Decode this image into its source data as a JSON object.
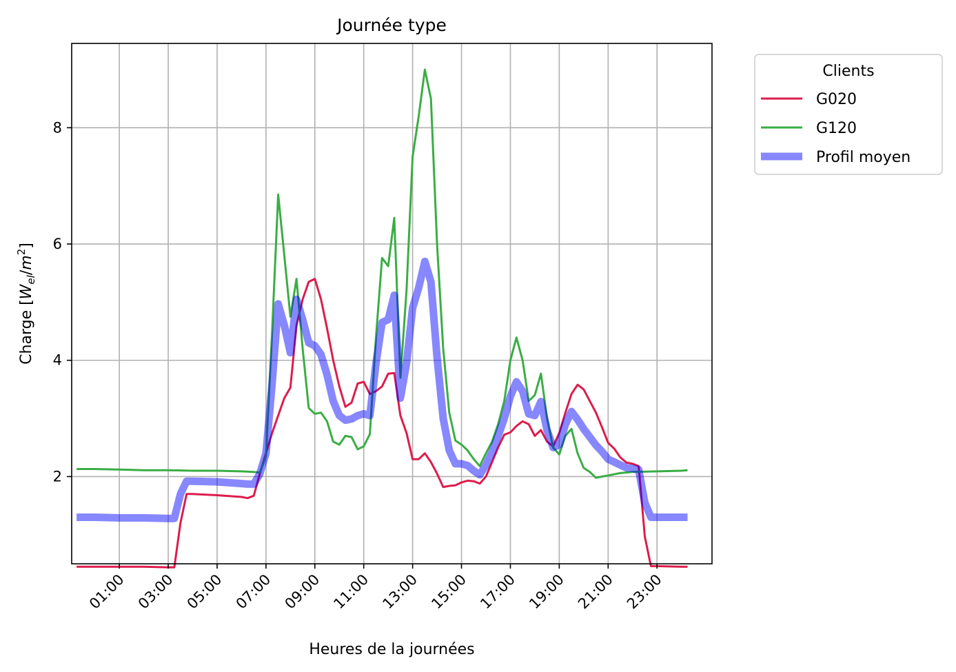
{
  "chart_data": {
    "type": "line",
    "title": "Journée type",
    "xlabel": "Heures de la journées",
    "ylabel_prefix": "Charge [",
    "ylabel_var": "W",
    "ylabel_sub": "el",
    "ylabel_mid": "/",
    "ylabel_var2": "m",
    "ylabel_sup": "2",
    "ylabel_suffix": "]",
    "xlim": [
      -0.95,
      25.25
    ],
    "ylim": [
      0.5,
      9.45
    ],
    "x_ticks": [
      1,
      3,
      5,
      7,
      9,
      11,
      13,
      15,
      17,
      19,
      21,
      23
    ],
    "x_tick_labels": [
      "01:00",
      "03:00",
      "05:00",
      "07:00",
      "09:00",
      "11:00",
      "13:00",
      "15:00",
      "17:00",
      "19:00",
      "21:00",
      "23:00"
    ],
    "y_ticks": [
      2,
      4,
      6,
      8
    ],
    "y_tick_labels": [
      "2",
      "4",
      "6",
      "8"
    ],
    "grid": true,
    "legend": {
      "title": "Clients",
      "placement": "outside-top-right"
    },
    "series": [
      {
        "name": "G020",
        "color": "#dc1c4b",
        "width": 3,
        "alpha": 1,
        "points": [
          [
            -0.75,
            0.45
          ],
          [
            0,
            0.45
          ],
          [
            1,
            0.45
          ],
          [
            2,
            0.45
          ],
          [
            3,
            0.44
          ],
          [
            3.25,
            0.44
          ],
          [
            3.5,
            1.2
          ],
          [
            3.75,
            1.7
          ],
          [
            4,
            1.7
          ],
          [
            5,
            1.68
          ],
          [
            6,
            1.65
          ],
          [
            6.25,
            1.63
          ],
          [
            6.5,
            1.67
          ],
          [
            6.75,
            2.05
          ],
          [
            7,
            2.4
          ],
          [
            7.25,
            2.75
          ],
          [
            7.5,
            3.05
          ],
          [
            7.75,
            3.35
          ],
          [
            8,
            3.53
          ],
          [
            8.25,
            4.6
          ],
          [
            8.5,
            5.05
          ],
          [
            8.75,
            5.35
          ],
          [
            9,
            5.4
          ],
          [
            9.25,
            5.05
          ],
          [
            9.5,
            4.55
          ],
          [
            9.75,
            4.0
          ],
          [
            10,
            3.55
          ],
          [
            10.25,
            3.2
          ],
          [
            10.5,
            3.27
          ],
          [
            10.75,
            3.6
          ],
          [
            11,
            3.63
          ],
          [
            11.25,
            3.42
          ],
          [
            11.5,
            3.47
          ],
          [
            11.75,
            3.55
          ],
          [
            12,
            3.77
          ],
          [
            12.25,
            3.78
          ],
          [
            12.5,
            3.05
          ],
          [
            12.75,
            2.75
          ],
          [
            13,
            2.3
          ],
          [
            13.25,
            2.3
          ],
          [
            13.5,
            2.4
          ],
          [
            13.75,
            2.25
          ],
          [
            14,
            2.05
          ],
          [
            14.25,
            1.82
          ],
          [
            14.5,
            1.84
          ],
          [
            14.75,
            1.85
          ],
          [
            15,
            1.9
          ],
          [
            15.25,
            1.93
          ],
          [
            15.5,
            1.92
          ],
          [
            15.75,
            1.88
          ],
          [
            16,
            2.0
          ],
          [
            16.25,
            2.25
          ],
          [
            16.5,
            2.5
          ],
          [
            16.75,
            2.72
          ],
          [
            17,
            2.76
          ],
          [
            17.25,
            2.87
          ],
          [
            17.5,
            2.95
          ],
          [
            17.75,
            2.9
          ],
          [
            18,
            2.7
          ],
          [
            18.25,
            2.8
          ],
          [
            18.5,
            2.6
          ],
          [
            18.75,
            2.52
          ],
          [
            19,
            2.75
          ],
          [
            19.25,
            3.1
          ],
          [
            19.5,
            3.42
          ],
          [
            19.75,
            3.58
          ],
          [
            20,
            3.5
          ],
          [
            20.25,
            3.3
          ],
          [
            20.5,
            3.1
          ],
          [
            20.75,
            2.85
          ],
          [
            21,
            2.58
          ],
          [
            21.25,
            2.48
          ],
          [
            21.5,
            2.33
          ],
          [
            21.75,
            2.24
          ],
          [
            22,
            2.22
          ],
          [
            22.25,
            2.18
          ],
          [
            22.5,
            0.97
          ],
          [
            22.75,
            0.46
          ],
          [
            23,
            0.46
          ],
          [
            24,
            0.45
          ],
          [
            24.25,
            0.45
          ]
        ]
      },
      {
        "name": "G120",
        "color": "#3aad44",
        "width": 3,
        "alpha": 1,
        "points": [
          [
            -0.75,
            2.13
          ],
          [
            0,
            2.13
          ],
          [
            1,
            2.12
          ],
          [
            2,
            2.11
          ],
          [
            3,
            2.11
          ],
          [
            4,
            2.1
          ],
          [
            5,
            2.1
          ],
          [
            6,
            2.09
          ],
          [
            6.5,
            2.08
          ],
          [
            6.75,
            2.07
          ],
          [
            7,
            2.35
          ],
          [
            7.25,
            4.5
          ],
          [
            7.5,
            6.85
          ],
          [
            7.75,
            5.8
          ],
          [
            8,
            4.75
          ],
          [
            8.25,
            5.4
          ],
          [
            8.5,
            4.2
          ],
          [
            8.75,
            3.18
          ],
          [
            9,
            3.08
          ],
          [
            9.25,
            3.1
          ],
          [
            9.5,
            2.95
          ],
          [
            9.75,
            2.6
          ],
          [
            10,
            2.55
          ],
          [
            10.25,
            2.7
          ],
          [
            10.5,
            2.68
          ],
          [
            10.75,
            2.47
          ],
          [
            11,
            2.52
          ],
          [
            11.25,
            2.73
          ],
          [
            11.5,
            4.4
          ],
          [
            11.75,
            5.76
          ],
          [
            12,
            5.62
          ],
          [
            12.25,
            6.45
          ],
          [
            12.5,
            3.7
          ],
          [
            12.75,
            5.2
          ],
          [
            13,
            7.5
          ],
          [
            13.25,
            8.2
          ],
          [
            13.5,
            9.0
          ],
          [
            13.75,
            8.5
          ],
          [
            14,
            6.0
          ],
          [
            14.25,
            4.2
          ],
          [
            14.5,
            3.1
          ],
          [
            14.75,
            2.62
          ],
          [
            15,
            2.55
          ],
          [
            15.25,
            2.45
          ],
          [
            15.5,
            2.3
          ],
          [
            15.75,
            2.18
          ],
          [
            16,
            2.4
          ],
          [
            16.25,
            2.6
          ],
          [
            16.5,
            2.9
          ],
          [
            16.75,
            3.3
          ],
          [
            17,
            4.0
          ],
          [
            17.25,
            4.39
          ],
          [
            17.5,
            4.0
          ],
          [
            17.75,
            3.3
          ],
          [
            18,
            3.4
          ],
          [
            18.25,
            3.77
          ],
          [
            18.5,
            3.0
          ],
          [
            18.75,
            2.5
          ],
          [
            19,
            2.38
          ],
          [
            19.25,
            2.7
          ],
          [
            19.5,
            2.82
          ],
          [
            19.75,
            2.4
          ],
          [
            20,
            2.15
          ],
          [
            20.25,
            2.08
          ],
          [
            20.5,
            1.98
          ],
          [
            20.75,
            2.0
          ],
          [
            21,
            2.02
          ],
          [
            21.5,
            2.06
          ],
          [
            22,
            2.08
          ],
          [
            23,
            2.09
          ],
          [
            24,
            2.1
          ],
          [
            24.25,
            2.11
          ]
        ]
      },
      {
        "name": "Profil moyen",
        "color": "#0000ff",
        "width": 11,
        "alpha": 0.47,
        "points": [
          [
            -0.75,
            1.3
          ],
          [
            0,
            1.3
          ],
          [
            1,
            1.29
          ],
          [
            2,
            1.29
          ],
          [
            3,
            1.28
          ],
          [
            3.25,
            1.28
          ],
          [
            3.5,
            1.7
          ],
          [
            3.75,
            1.92
          ],
          [
            4,
            1.92
          ],
          [
            5,
            1.91
          ],
          [
            6,
            1.88
          ],
          [
            6.25,
            1.87
          ],
          [
            6.5,
            1.87
          ],
          [
            6.75,
            2.05
          ],
          [
            7,
            2.4
          ],
          [
            7.25,
            3.6
          ],
          [
            7.5,
            4.97
          ],
          [
            7.75,
            4.6
          ],
          [
            8,
            4.13
          ],
          [
            8.25,
            5.05
          ],
          [
            8.5,
            4.7
          ],
          [
            8.75,
            4.3
          ],
          [
            9,
            4.25
          ],
          [
            9.25,
            4.1
          ],
          [
            9.5,
            3.75
          ],
          [
            9.75,
            3.3
          ],
          [
            10,
            3.05
          ],
          [
            10.25,
            2.97
          ],
          [
            10.5,
            2.99
          ],
          [
            10.75,
            3.05
          ],
          [
            11,
            3.08
          ],
          [
            11.25,
            3.05
          ],
          [
            11.5,
            3.95
          ],
          [
            11.75,
            4.65
          ],
          [
            12,
            4.7
          ],
          [
            12.25,
            5.12
          ],
          [
            12.5,
            3.35
          ],
          [
            12.75,
            3.95
          ],
          [
            13,
            4.9
          ],
          [
            13.25,
            5.25
          ],
          [
            13.5,
            5.7
          ],
          [
            13.75,
            5.35
          ],
          [
            14,
            4.05
          ],
          [
            14.25,
            3.0
          ],
          [
            14.5,
            2.45
          ],
          [
            14.75,
            2.22
          ],
          [
            15,
            2.22
          ],
          [
            15.25,
            2.19
          ],
          [
            15.5,
            2.1
          ],
          [
            15.75,
            2.03
          ],
          [
            16,
            2.2
          ],
          [
            16.25,
            2.42
          ],
          [
            16.5,
            2.7
          ],
          [
            16.75,
            3.0
          ],
          [
            17,
            3.38
          ],
          [
            17.25,
            3.63
          ],
          [
            17.5,
            3.47
          ],
          [
            17.75,
            3.08
          ],
          [
            18,
            3.05
          ],
          [
            18.25,
            3.29
          ],
          [
            18.5,
            2.8
          ],
          [
            18.75,
            2.5
          ],
          [
            19,
            2.55
          ],
          [
            19.25,
            2.9
          ],
          [
            19.5,
            3.12
          ],
          [
            19.75,
            2.98
          ],
          [
            20,
            2.82
          ],
          [
            20.25,
            2.68
          ],
          [
            20.5,
            2.54
          ],
          [
            20.75,
            2.43
          ],
          [
            21,
            2.3
          ],
          [
            21.25,
            2.25
          ],
          [
            21.5,
            2.2
          ],
          [
            21.75,
            2.15
          ],
          [
            22,
            2.14
          ],
          [
            22.25,
            2.12
          ],
          [
            22.5,
            1.55
          ],
          [
            22.75,
            1.3
          ],
          [
            23,
            1.3
          ],
          [
            24,
            1.3
          ],
          [
            24.25,
            1.3
          ]
        ]
      }
    ]
  }
}
